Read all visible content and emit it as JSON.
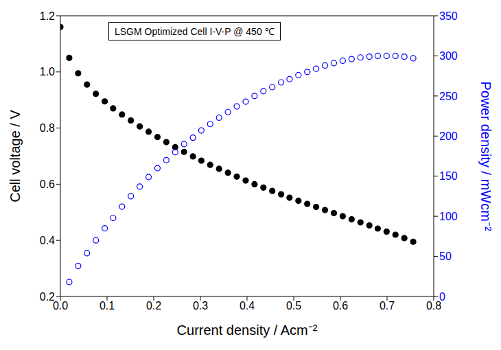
{
  "chart_data": {
    "type": "scatter",
    "annotation": "LSGM Optimized Cell I-V-P @ 450 ℃",
    "x_label": "Current density / Acm⁻²",
    "y_label": "Cell voltage / V",
    "y2_label": "Power density / mWcm⁻²",
    "x": [
      0.0,
      0.019,
      0.038,
      0.057,
      0.076,
      0.095,
      0.113,
      0.132,
      0.151,
      0.17,
      0.189,
      0.208,
      0.227,
      0.246,
      0.265,
      0.284,
      0.302,
      0.321,
      0.34,
      0.359,
      0.378,
      0.397,
      0.416,
      0.435,
      0.454,
      0.473,
      0.491,
      0.51,
      0.529,
      0.548,
      0.567,
      0.586,
      0.605,
      0.624,
      0.643,
      0.662,
      0.68,
      0.699,
      0.718,
      0.737,
      0.756
    ],
    "xlim": [
      0,
      0.8
    ],
    "xticks": [
      {
        "value": 0,
        "label": "0.0"
      },
      0.1,
      0.2,
      0.3,
      0.4,
      0.5,
      0.6,
      0.7,
      0.8
    ],
    "ylim": [
      0.2,
      1.2
    ],
    "yticks": [
      0.2,
      0.4,
      0.6,
      0.8,
      {
        "value": 1,
        "label": "1.0"
      },
      1.2
    ],
    "y2lim": [
      0,
      350
    ],
    "y2ticks": [
      0,
      50,
      100,
      150,
      200,
      250,
      300,
      350
    ],
    "grid": false,
    "series": [
      {
        "color": "#000000",
        "marker": "filled_circle",
        "values": [
          1.16,
          1.05,
          0.995,
          0.955,
          0.922,
          0.895,
          0.87,
          0.848,
          0.827,
          0.806,
          0.787,
          0.768,
          0.75,
          0.732,
          0.715,
          0.699,
          0.684,
          0.669,
          0.655,
          0.641,
          0.627,
          0.613,
          0.6,
          0.588,
          0.576,
          0.564,
          0.552,
          0.541,
          0.53,
          0.519,
          0.508,
          0.497,
          0.486,
          0.475,
          0.464,
          0.453,
          0.442,
          0.431,
          0.42,
          0.408,
          0.395
        ]
      },
      {
        "color": "#0000ff",
        "marker": "open_circle",
        "axis": "y2",
        "values": [
          null,
          18,
          38,
          54,
          70,
          85,
          98,
          112,
          125,
          137,
          149,
          160,
          170,
          180,
          190,
          198,
          207,
          215,
          223,
          230,
          237,
          243,
          250,
          256,
          261,
          267,
          271,
          276,
          280,
          284,
          288,
          291,
          294,
          296,
          298,
          299,
          300,
          300,
          300,
          299,
          297
        ]
      }
    ]
  }
}
